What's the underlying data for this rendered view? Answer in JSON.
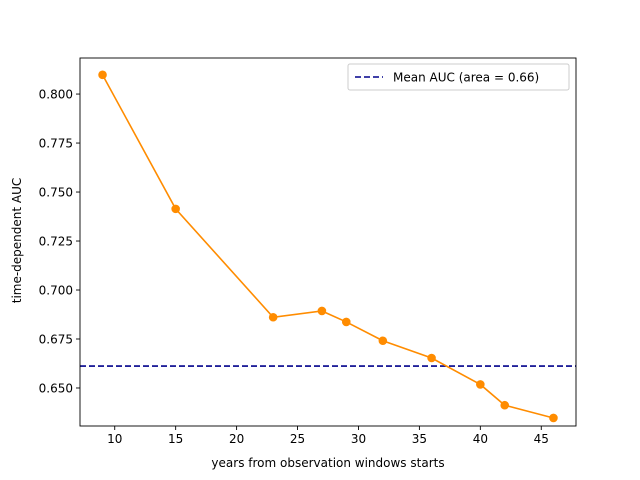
{
  "chart_data": {
    "type": "line",
    "title": "",
    "xlabel": "years from observation windows starts",
    "ylabel": "time-dependent AUC",
    "xlim": [
      7.15,
      47.85
    ],
    "ylim": [
      0.6306,
      0.8184
    ],
    "xticks": [
      10,
      15,
      20,
      25,
      30,
      35,
      40,
      45
    ],
    "yticks": [
      0.65,
      0.675,
      0.7,
      0.725,
      0.75,
      0.775,
      0.8
    ],
    "ytick_labels": [
      "0.650",
      "0.675",
      "0.700",
      "0.725",
      "0.750",
      "0.775",
      "0.800"
    ],
    "grid": false,
    "legend_position": "top-right",
    "series": [
      {
        "color": "#ff8c00",
        "marker": "circle",
        "x": [
          9,
          15,
          23,
          27,
          29,
          32,
          36,
          40,
          42,
          46
        ],
        "y": [
          0.8098,
          0.7414,
          0.6861,
          0.6893,
          0.6837,
          0.6741,
          0.6653,
          0.6518,
          0.6412,
          0.6347
        ]
      }
    ],
    "reference_line": {
      "orientation": "horizontal",
      "y": 0.6612,
      "color": "#00008b",
      "style": "dashed",
      "legend_label": "Mean AUC (area = 0.66)"
    }
  }
}
